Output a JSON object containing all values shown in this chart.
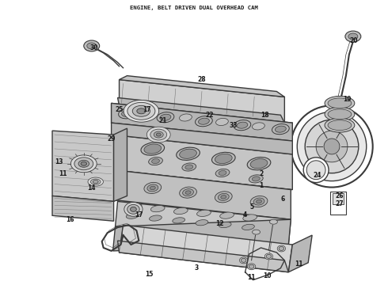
{
  "caption": "ENGINE, BELT DRIVEN DUAL OVERHEAD CAM",
  "caption_fontsize": 5.2,
  "bg_color": "#ffffff",
  "diagram_color": "#3a3a3a",
  "figsize": [
    4.9,
    3.6
  ],
  "dpi": 100,
  "img_extent": [
    0,
    490,
    0,
    360
  ]
}
